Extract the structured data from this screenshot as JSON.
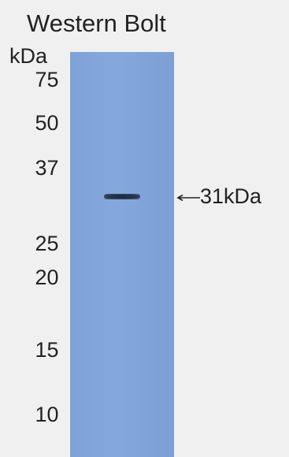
{
  "blot": {
    "title": "Western Bolt",
    "unit": "kDa",
    "markers": [
      "75",
      "50",
      "37",
      "25",
      "20",
      "15",
      "10"
    ],
    "band_label": "31kDa",
    "membrane_color": "#82a6da",
    "band_color": "#1f3044"
  }
}
